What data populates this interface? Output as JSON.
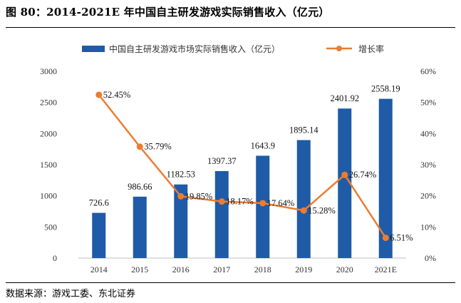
{
  "header": {
    "title": "图 80：2014-2021E 年中国自主研发游戏实际销售收入（亿元）"
  },
  "footer": {
    "source": "数据来源：游戏工委、东北证券"
  },
  "chart_data": {
    "type": "bar",
    "categories": [
      "2014",
      "2015",
      "2016",
      "2017",
      "2018",
      "2019",
      "2020",
      "2021E"
    ],
    "series": [
      {
        "name": "中国自主研发游戏市场实际销售收入（亿元）",
        "type": "bar",
        "axis": "left",
        "color": "#1f5ba6",
        "values": [
          726.6,
          986.66,
          1182.53,
          1397.37,
          1643.9,
          1895.14,
          2401.92,
          2558.19
        ],
        "labels": [
          "726.6",
          "986.66",
          "1182.53",
          "1397.37",
          "1643.9",
          "1895.14",
          "2401.92",
          "2558.19"
        ]
      },
      {
        "name": "增长率",
        "type": "line",
        "axis": "right",
        "color": "#ec7c30",
        "values": [
          52.45,
          35.79,
          19.85,
          18.17,
          17.64,
          15.28,
          26.74,
          6.51
        ],
        "labels": [
          "52.45%",
          "35.79%",
          "19.85%",
          "18.17%",
          "17.64%",
          "15.28%",
          "26.74%",
          "6.51%"
        ]
      }
    ],
    "y_left": {
      "min": 0,
      "max": 3000,
      "ticks": [
        "0",
        "500",
        "1000",
        "1500",
        "2000",
        "2500",
        "3000"
      ]
    },
    "y_right": {
      "min": 0,
      "max": 60,
      "ticks": [
        "0%",
        "10%",
        "20%",
        "30%",
        "40%",
        "50%",
        "60%"
      ]
    },
    "legend_position": "top",
    "grid": false
  }
}
